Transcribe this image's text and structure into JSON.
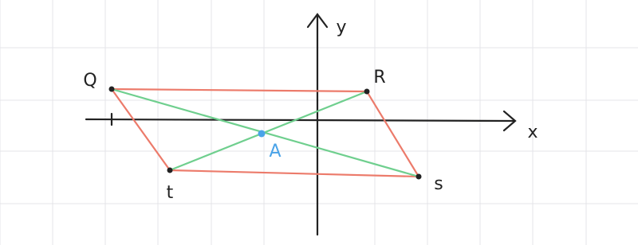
{
  "axes": {
    "y_label": "y",
    "x_label": "x"
  },
  "points": [
    {
      "label": "Q"
    },
    {
      "label": "R"
    },
    {
      "label": "s"
    },
    {
      "label": "t"
    },
    {
      "label": "A"
    }
  ]
}
